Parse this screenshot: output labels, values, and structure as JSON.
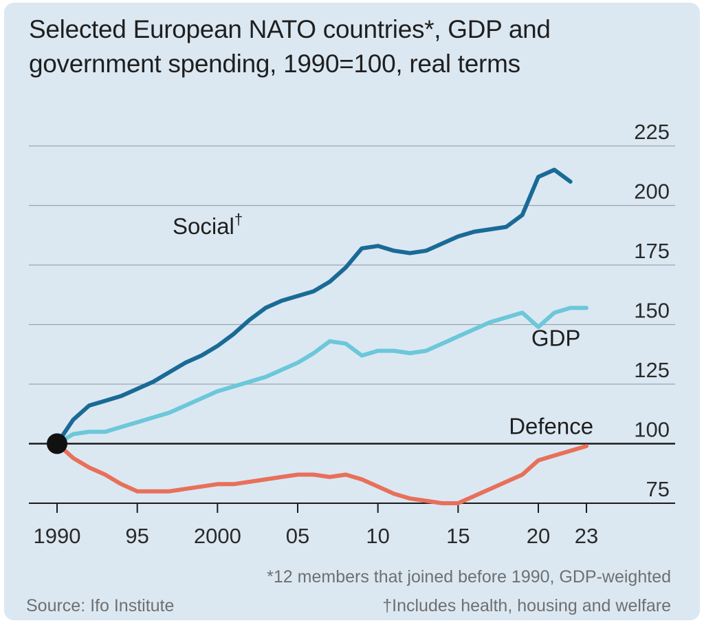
{
  "title_line1": "Selected European NATO countries*, GDP and",
  "title_line2": "government spending, 1990=100, real terms",
  "footnote_members": "*12 members that joined before 1990, GDP-weighted",
  "footnote_source": "Source: Ifo Institute",
  "footnote_social": "†Includes health, housing and welfare",
  "colors": {
    "social": "#1a6a96",
    "gdp": "#6cc7d9",
    "defence": "#e8705a",
    "grid": "#9aa4ae",
    "baseline": "#1a1a1a"
  },
  "chart_data": {
    "type": "line",
    "title": "Selected European NATO countries*, GDP and government spending, 1990=100, real terms",
    "xlabel": "",
    "ylabel": "",
    "xlim": [
      1990,
      2023
    ],
    "ylim": [
      75,
      225
    ],
    "x_ticks": [
      1990,
      1995,
      2000,
      2005,
      2010,
      2015,
      2020,
      2023
    ],
    "x_tick_labels": [
      "1990",
      "95",
      "2000",
      "05",
      "10",
      "15",
      "20",
      "23"
    ],
    "y_ticks": [
      75,
      100,
      125,
      150,
      175,
      200,
      225
    ],
    "y_tick_labels": [
      "75",
      "100",
      "125",
      "150",
      "175",
      "200",
      "225"
    ],
    "y_axis_position": "right",
    "grid": true,
    "baseline": 100,
    "origin_marker": [
      1990,
      100
    ],
    "series": [
      {
        "name": "Social†",
        "color": "#1a6a96",
        "label_position": [
          1997.2,
          188
        ],
        "x": [
          1990,
          1991,
          1992,
          1993,
          1994,
          1995,
          1996,
          1997,
          1998,
          1999,
          2000,
          2001,
          2002,
          2003,
          2004,
          2005,
          2006,
          2007,
          2008,
          2009,
          2010,
          2011,
          2012,
          2013,
          2014,
          2015,
          2016,
          2017,
          2018,
          2019,
          2020,
          2021,
          2022,
          2023
        ],
        "y": [
          100,
          110,
          116,
          118,
          120,
          123,
          126,
          130,
          134,
          137,
          141,
          146,
          152,
          157,
          160,
          162,
          164,
          168,
          174,
          182,
          183,
          181,
          180,
          181,
          184,
          187,
          189,
          190,
          191,
          196,
          212,
          215,
          210,
          null
        ]
      },
      {
        "name": "GDP",
        "color": "#6cc7d9",
        "label_position": [
          2021.1,
          141
        ],
        "x": [
          1990,
          1991,
          1992,
          1993,
          1994,
          1995,
          1996,
          1997,
          1998,
          1999,
          2000,
          2001,
          2002,
          2003,
          2004,
          2005,
          2006,
          2007,
          2008,
          2009,
          2010,
          2011,
          2012,
          2013,
          2014,
          2015,
          2016,
          2017,
          2018,
          2019,
          2020,
          2021,
          2022,
          2023
        ],
        "y": [
          100,
          104,
          105,
          105,
          107,
          109,
          111,
          113,
          116,
          119,
          122,
          124,
          126,
          128,
          131,
          134,
          138,
          143,
          142,
          137,
          139,
          139,
          138,
          139,
          142,
          145,
          148,
          151,
          153,
          155,
          149,
          155,
          157,
          157
        ]
      },
      {
        "name": "Defence",
        "color": "#e8705a",
        "label_position": [
          2020.8,
          104
        ],
        "x": [
          1990,
          1991,
          1992,
          1993,
          1994,
          1995,
          1996,
          1997,
          1998,
          1999,
          2000,
          2001,
          2002,
          2003,
          2004,
          2005,
          2006,
          2007,
          2008,
          2009,
          2010,
          2011,
          2012,
          2013,
          2014,
          2015,
          2016,
          2017,
          2018,
          2019,
          2020,
          2021,
          2022,
          2023
        ],
        "y": [
          100,
          94,
          90,
          87,
          83,
          80,
          80,
          80,
          81,
          82,
          83,
          83,
          84,
          85,
          86,
          87,
          87,
          86,
          87,
          85,
          82,
          79,
          77,
          76,
          75,
          75,
          78,
          81,
          84,
          87,
          93,
          95,
          97,
          99
        ]
      }
    ]
  }
}
